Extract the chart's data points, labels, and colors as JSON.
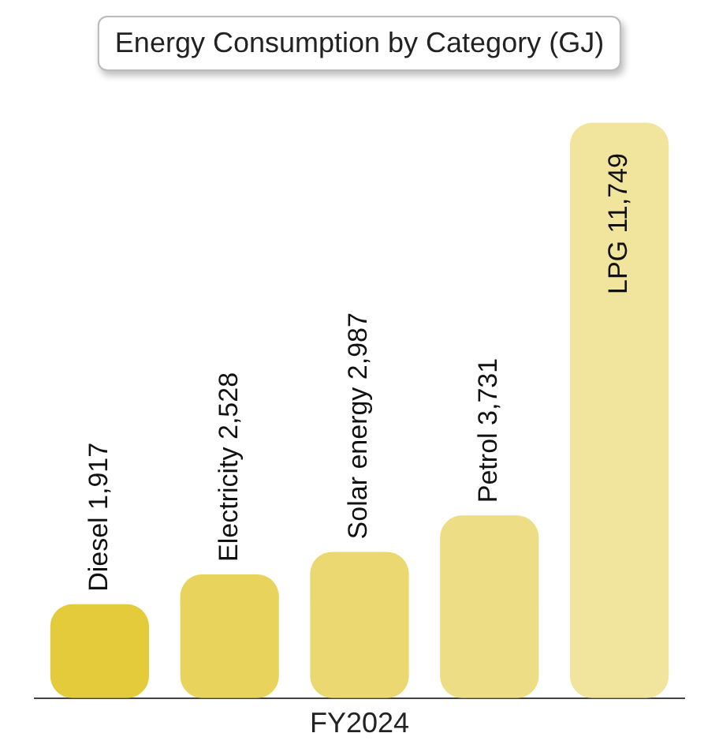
{
  "chart_data": {
    "type": "bar",
    "title": "Energy Consumption by Category (GJ)",
    "xlabel": "FY2024",
    "categories": [
      null,
      null,
      null,
      null,
      null
    ],
    "values": [
      1917,
      2528,
      2987,
      3731,
      11749
    ],
    "colors": [
      "#e4cb3b",
      "#e8d45c",
      "#ebd870",
      "#eddd85",
      "#f1e59d"
    ],
    "value_labels": [
      "Diesel 1,917",
      "Electricity 2,528",
      "Solar energy 2,987",
      "Petrol 3,731",
      "LPG 11,749"
    ],
    "legend": false,
    "grid": false
  }
}
